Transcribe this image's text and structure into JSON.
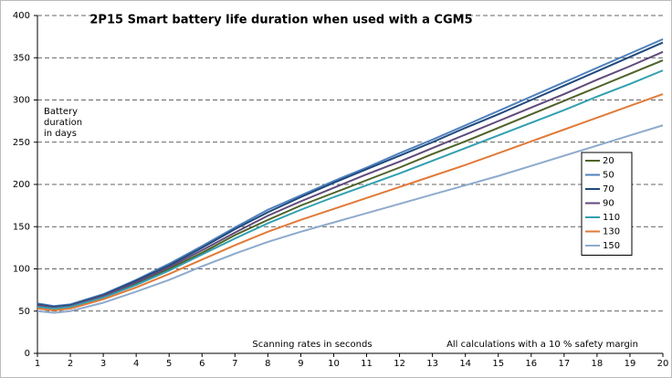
{
  "chart_data": {
    "type": "line",
    "title": "2P15 Smart battery life duration when used with a CGM5",
    "y_label": [
      "Battery",
      "duration",
      "in days"
    ],
    "x_label": "Scanning rates in seconds",
    "annotation": "All calculations with a 10 % safety margin",
    "x": [
      1,
      1.5,
      2,
      3,
      4,
      5,
      6,
      7,
      8,
      9,
      10,
      11,
      12,
      13,
      14,
      15,
      16,
      17,
      18,
      19,
      20
    ],
    "xlim": [
      1,
      20
    ],
    "xticks": [
      1,
      2,
      3,
      4,
      5,
      6,
      7,
      8,
      9,
      10,
      11,
      12,
      13,
      14,
      15,
      16,
      17,
      18,
      19,
      20
    ],
    "ylim": [
      0,
      400
    ],
    "yticks": [
      0,
      50,
      100,
      150,
      200,
      250,
      300,
      350,
      400
    ],
    "grid": true,
    "legend": "right",
    "series": [
      {
        "name": "20",
        "color": "#4f6228",
        "values": [
          56,
          54,
          56,
          67,
          83,
          100,
          119,
          140,
          158,
          175,
          190,
          205,
          220,
          236,
          251,
          267,
          283,
          299,
          315,
          331,
          347
        ]
      },
      {
        "name": "50",
        "color": "#4f81bd",
        "values": [
          59,
          56,
          58,
          70,
          87,
          106,
          127,
          149,
          170,
          187,
          204,
          220,
          237,
          253,
          270,
          287,
          304,
          321,
          338,
          355,
          372
        ]
      },
      {
        "name": "70",
        "color": "#1f497d",
        "values": [
          58,
          55,
          57,
          69,
          86,
          104,
          125,
          147,
          167,
          185,
          202,
          218,
          234,
          250,
          267,
          283,
          300,
          317,
          334,
          351,
          368
        ]
      },
      {
        "name": "90",
        "color": "#604a7b",
        "values": [
          57,
          54,
          56,
          68,
          84,
          102,
          122,
          143,
          163,
          180,
          196,
          212,
          227,
          243,
          259,
          275,
          291,
          307,
          324,
          340,
          357
        ]
      },
      {
        "name": "110",
        "color": "#31a0b0",
        "values": [
          55,
          53,
          55,
          66,
          81,
          98,
          117,
          136,
          154,
          170,
          185,
          199,
          213,
          228,
          243,
          258,
          273,
          288,
          304,
          319,
          335
        ]
      },
      {
        "name": "130",
        "color": "#e07b39",
        "values": [
          53,
          51,
          53,
          64,
          78,
          94,
          111,
          128,
          144,
          158,
          171,
          184,
          197,
          210,
          223,
          237,
          251,
          265,
          279,
          293,
          307
        ]
      },
      {
        "name": "150",
        "color": "#8eaacc",
        "values": [
          50,
          48,
          50,
          60,
          73,
          87,
          103,
          118,
          132,
          144,
          155,
          166,
          177,
          188,
          199,
          210,
          222,
          234,
          246,
          258,
          270
        ]
      }
    ]
  }
}
